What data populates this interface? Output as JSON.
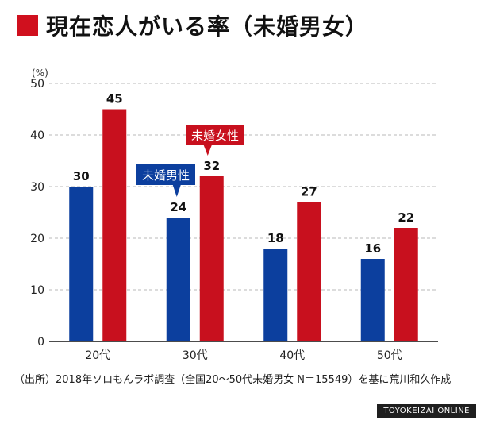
{
  "title": "現在恋人がいる率（未婚男女）",
  "source_note": "（出所）2018年ソロもんラボ調査（全国20〜50代未婚男女 N＝15549）を基に荒川和久作成",
  "brand": "TOYOKEIZAI ONLINE",
  "colors": {
    "accent": "#d0101e",
    "male": "#0c3f9e",
    "female": "#c8101e"
  },
  "chart_data": {
    "type": "bar",
    "title": "現在恋人がいる率（未婚男女）",
    "unit_label": "(%)",
    "categories": [
      "20代",
      "30代",
      "40代",
      "50代"
    ],
    "series": [
      {
        "name": "未婚男性",
        "values": [
          30,
          24,
          18,
          16
        ],
        "color": "#0c3f9e"
      },
      {
        "name": "未婚女性",
        "values": [
          45,
          32,
          27,
          22
        ],
        "color": "#c8101e"
      }
    ],
    "ylim": [
      0,
      50
    ],
    "yticks": [
      0,
      10,
      20,
      30,
      40,
      50
    ],
    "grid": true,
    "legend": "callout labels near 30代 bars"
  }
}
